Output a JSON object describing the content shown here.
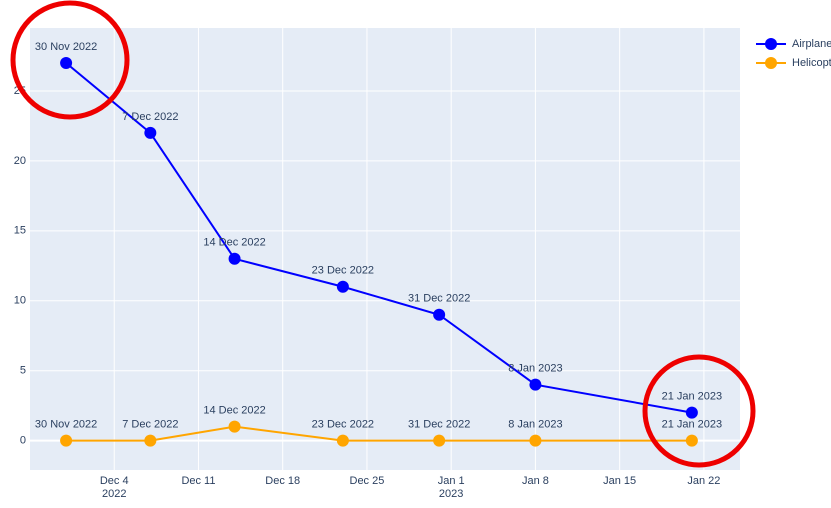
{
  "chart_data": {
    "type": "line",
    "x": [
      "2022-11-30",
      "2022-12-07",
      "2022-12-14",
      "2022-12-23",
      "2022-12-31",
      "2023-01-08",
      "2023-01-21"
    ],
    "series": [
      {
        "name": "Airplanes",
        "color": "#0000ff",
        "values": [
          27,
          22,
          13,
          11,
          9,
          4,
          2
        ],
        "value_labels": [
          "30 Nov 2022",
          "7 Dec 2022",
          "14 Dec 2022",
          "23 Dec 2022",
          "31 Dec 2022",
          "8 Jan 2023",
          "21 Jan 2023"
        ]
      },
      {
        "name": "Helicopters",
        "color": "#ffa500",
        "values": [
          0,
          0,
          1,
          0,
          0,
          0,
          0
        ],
        "value_labels": [
          "30 Nov 2022",
          "7 Dec 2022",
          "14 Dec 2022",
          "23 Dec 2022",
          "31 Dec 2022",
          "8 Jan 2023",
          "21 Jan 2023"
        ]
      }
    ],
    "xlim": [
      "2022-11-27",
      "2023-01-25"
    ],
    "xticks": [
      {
        "value": "2022-12-04",
        "label": "Dec 4\n2022"
      },
      {
        "value": "2022-12-11",
        "label": "Dec 11"
      },
      {
        "value": "2022-12-18",
        "label": "Dec 18"
      },
      {
        "value": "2022-12-25",
        "label": "Dec 25"
      },
      {
        "value": "2023-01-01",
        "label": "Jan 1\n2023"
      },
      {
        "value": "2023-01-08",
        "label": "Jan 8"
      },
      {
        "value": "2023-01-15",
        "label": "Jan 15"
      },
      {
        "value": "2023-01-22",
        "label": "Jan 22"
      }
    ],
    "ylim": [
      -2.1,
      29.5
    ],
    "yticks": [
      0,
      5,
      10,
      15,
      20,
      25
    ],
    "grid": true,
    "legend": "top-right"
  }
}
